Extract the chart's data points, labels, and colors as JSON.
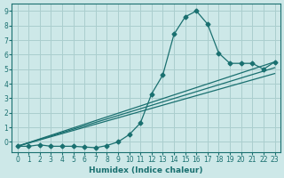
{
  "xlabel": "Humidex (Indice chaleur)",
  "ylabel": "",
  "bg_color": "#cde8e8",
  "grid_color": "#aacece",
  "line_color": "#1a7070",
  "xlim": [
    -0.5,
    23.5
  ],
  "ylim": [
    -0.7,
    9.5
  ],
  "xticks": [
    0,
    1,
    2,
    3,
    4,
    5,
    6,
    7,
    8,
    9,
    10,
    11,
    12,
    13,
    14,
    15,
    16,
    17,
    18,
    19,
    20,
    21,
    22,
    23
  ],
  "yticks": [
    0,
    1,
    2,
    3,
    4,
    5,
    6,
    7,
    8,
    9
  ],
  "curve1_x": [
    0,
    1,
    2,
    3,
    4,
    5,
    6,
    7,
    8,
    9,
    10,
    11,
    12,
    13,
    14,
    15,
    16,
    17,
    18,
    19,
    20,
    21,
    22,
    23
  ],
  "curve1_y": [
    -0.3,
    -0.3,
    -0.2,
    -0.3,
    -0.3,
    -0.3,
    -0.35,
    -0.4,
    -0.25,
    0.0,
    0.5,
    1.3,
    3.3,
    4.6,
    7.4,
    8.6,
    9.0,
    8.1,
    6.1,
    5.4,
    5.4,
    5.4,
    5.0,
    5.5
  ],
  "line1_x": [
    0,
    23
  ],
  "line1_y": [
    -0.3,
    5.5
  ],
  "line2_x": [
    0,
    23
  ],
  "line2_y": [
    -0.3,
    5.1
  ],
  "line3_x": [
    0,
    23
  ],
  "line3_y": [
    -0.3,
    4.7
  ]
}
